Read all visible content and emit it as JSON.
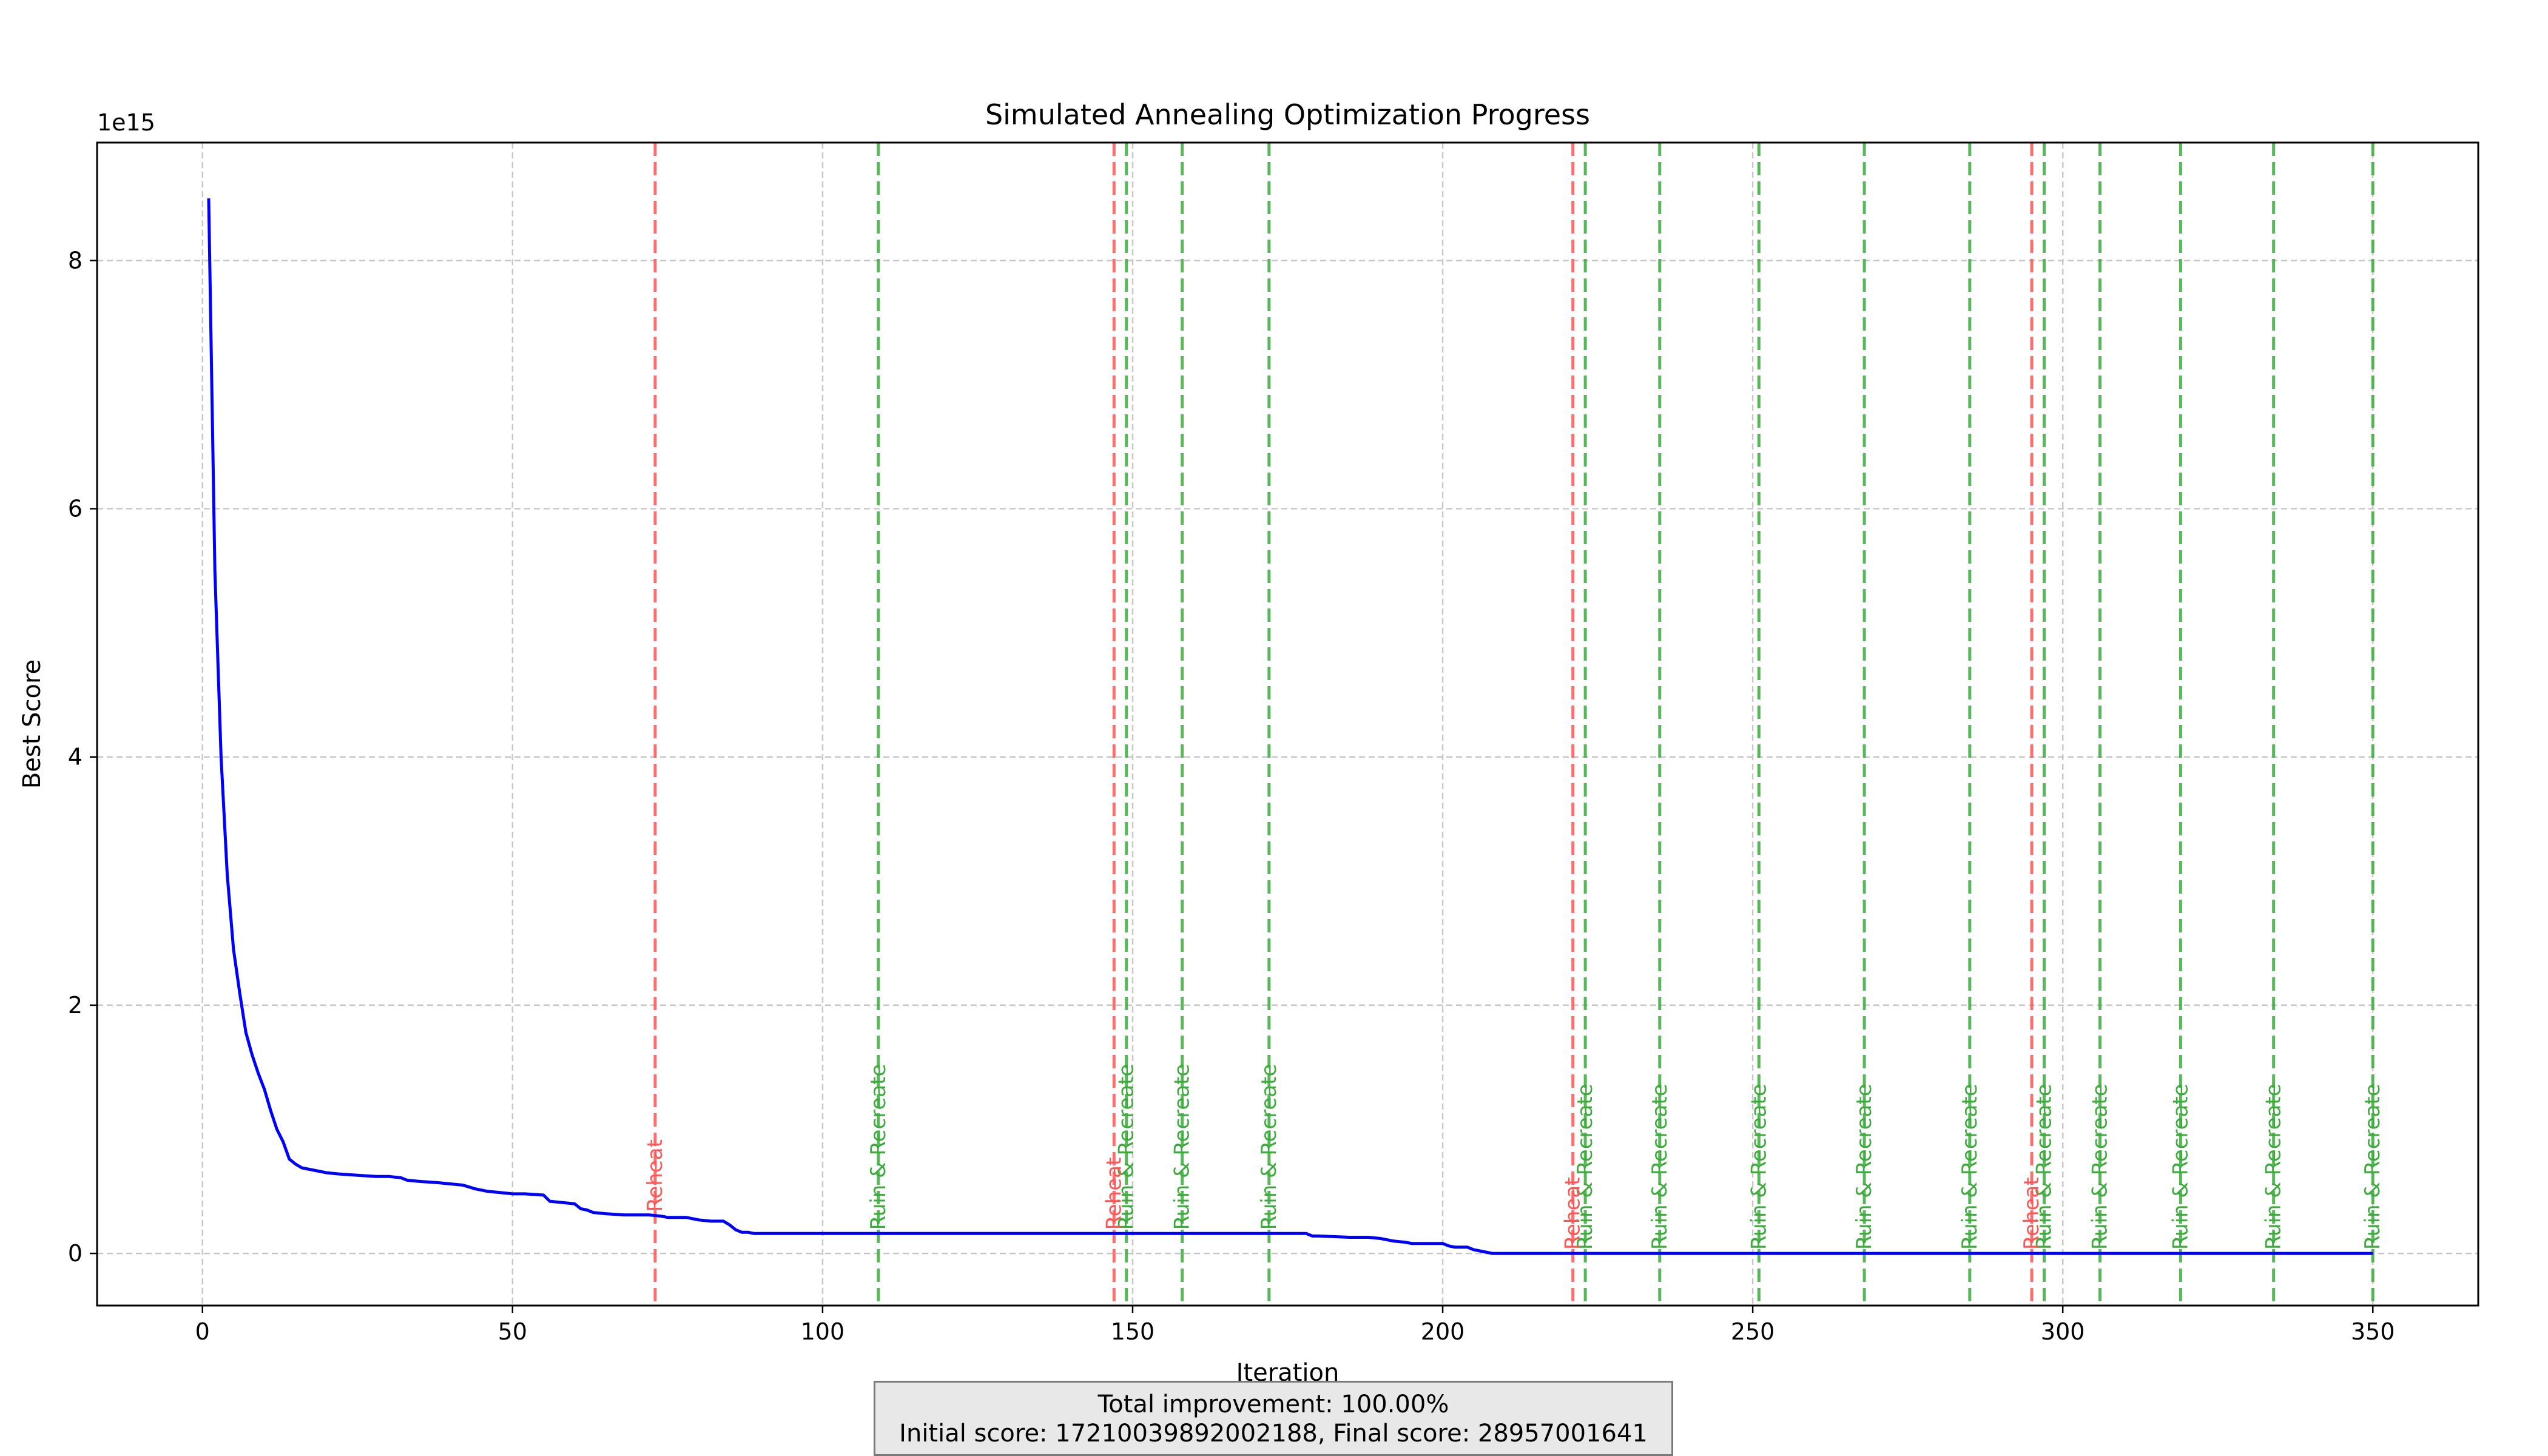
{
  "chart_data": {
    "type": "line",
    "title": "Simulated Annealing Optimization Progress",
    "xlabel": "Iteration",
    "ylabel": "Best Score",
    "y_offset_label": "1e15",
    "xlim": [
      -17,
      367
    ],
    "ylim": [
      -0.42,
      8.95
    ],
    "x_ticks": [
      0,
      50,
      100,
      150,
      200,
      250,
      300,
      350
    ],
    "y_ticks": [
      0,
      2,
      4,
      6,
      8
    ],
    "grid": true,
    "series": [
      {
        "color": "#0000ff",
        "x": [
          1,
          2,
          3,
          4,
          5,
          6,
          7,
          8,
          9,
          10,
          11,
          12,
          13,
          14,
          15,
          16,
          17,
          18,
          20,
          22,
          25,
          28,
          30,
          32,
          33,
          35,
          38,
          40,
          42,
          44,
          46,
          48,
          50,
          52,
          55,
          56,
          58,
          60,
          61,
          62,
          63,
          65,
          68,
          70,
          72,
          74,
          75,
          78,
          80,
          82,
          84,
          85,
          86,
          87,
          88,
          89,
          90,
          95,
          100,
          110,
          120,
          130,
          140,
          147,
          150,
          160,
          170,
          175,
          178,
          179,
          180,
          185,
          188,
          190,
          192,
          194,
          195,
          198,
          200,
          201,
          202,
          204,
          205,
          206,
          207,
          208,
          209,
          210,
          220,
          230,
          240,
          250,
          260,
          270,
          280,
          290,
          300,
          310,
          320,
          330,
          340,
          350
        ],
        "y": [
          8.5,
          5.5,
          4.0,
          3.05,
          2.45,
          2.1,
          1.78,
          1.6,
          1.45,
          1.32,
          1.15,
          1.0,
          0.9,
          0.76,
          0.72,
          0.69,
          0.68,
          0.67,
          0.65,
          0.64,
          0.63,
          0.62,
          0.62,
          0.61,
          0.59,
          0.58,
          0.57,
          0.56,
          0.55,
          0.52,
          0.5,
          0.49,
          0.48,
          0.48,
          0.47,
          0.42,
          0.41,
          0.4,
          0.36,
          0.35,
          0.33,
          0.32,
          0.31,
          0.31,
          0.31,
          0.3,
          0.29,
          0.29,
          0.27,
          0.26,
          0.26,
          0.23,
          0.19,
          0.17,
          0.17,
          0.16,
          0.16,
          0.16,
          0.16,
          0.16,
          0.16,
          0.16,
          0.16,
          0.16,
          0.16,
          0.16,
          0.16,
          0.16,
          0.16,
          0.14,
          0.14,
          0.13,
          0.13,
          0.12,
          0.1,
          0.09,
          0.08,
          0.08,
          0.08,
          0.06,
          0.05,
          0.05,
          0.03,
          0.02,
          0.01,
          0.0,
          0.0,
          0.0,
          0.0,
          0.0,
          0.0,
          0.0,
          0.0,
          0.0,
          0.0,
          0.0,
          0.0,
          0.0,
          0.0,
          0.0,
          0.0,
          0.0
        ]
      }
    ],
    "reheat_events": {
      "label": "Reheat",
      "color": "#ff5555",
      "x": [
        73,
        147,
        221,
        295
      ]
    },
    "ruin_recreate_events": {
      "label": "Ruin & Recreate",
      "color": "#3cab3c",
      "x": [
        109,
        149,
        158,
        172,
        223,
        235,
        251,
        268,
        285,
        297,
        306,
        319,
        334,
        350
      ]
    }
  },
  "footer": {
    "line1": "Total improvement: 100.00%",
    "line2": "Initial score: 17210039892002188, Final score: 28957001641"
  }
}
